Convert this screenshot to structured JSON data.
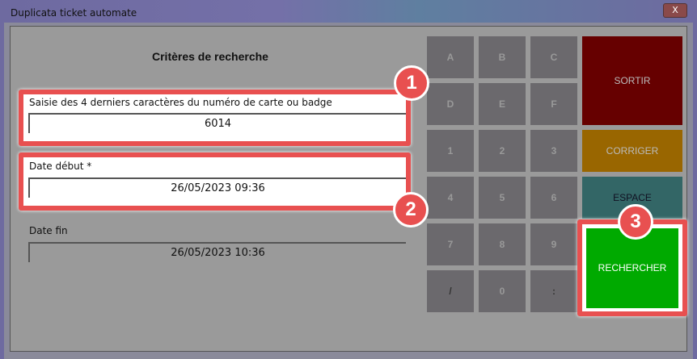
{
  "window": {
    "title": "Duplicata ticket automate",
    "close_label": "X"
  },
  "form": {
    "heading": "Critères de recherche",
    "card_label": "Saisie des 4 derniers caractères du numéro de carte ou badge",
    "card_value": "6014",
    "start_label": "Date début *",
    "start_value": "26/05/2023 09:36",
    "end_label": "Date fin",
    "end_value": "26/05/2023 10:36"
  },
  "keypad": [
    "A",
    "B",
    "C",
    "D",
    "E",
    "F",
    "1",
    "2",
    "3",
    "4",
    "5",
    "6",
    "7",
    "8",
    "9",
    "/",
    "0",
    ":"
  ],
  "actions": {
    "exit": "SORTIR",
    "correct": "CORRIGER",
    "space": "ESPACE",
    "search": "RECHERCHER"
  },
  "badges": [
    "1",
    "2",
    "3"
  ],
  "colors": {
    "exit": "#660000",
    "correct": "#996600",
    "space": "#336666",
    "search": "#00aa00",
    "highlight": "#e85050"
  }
}
